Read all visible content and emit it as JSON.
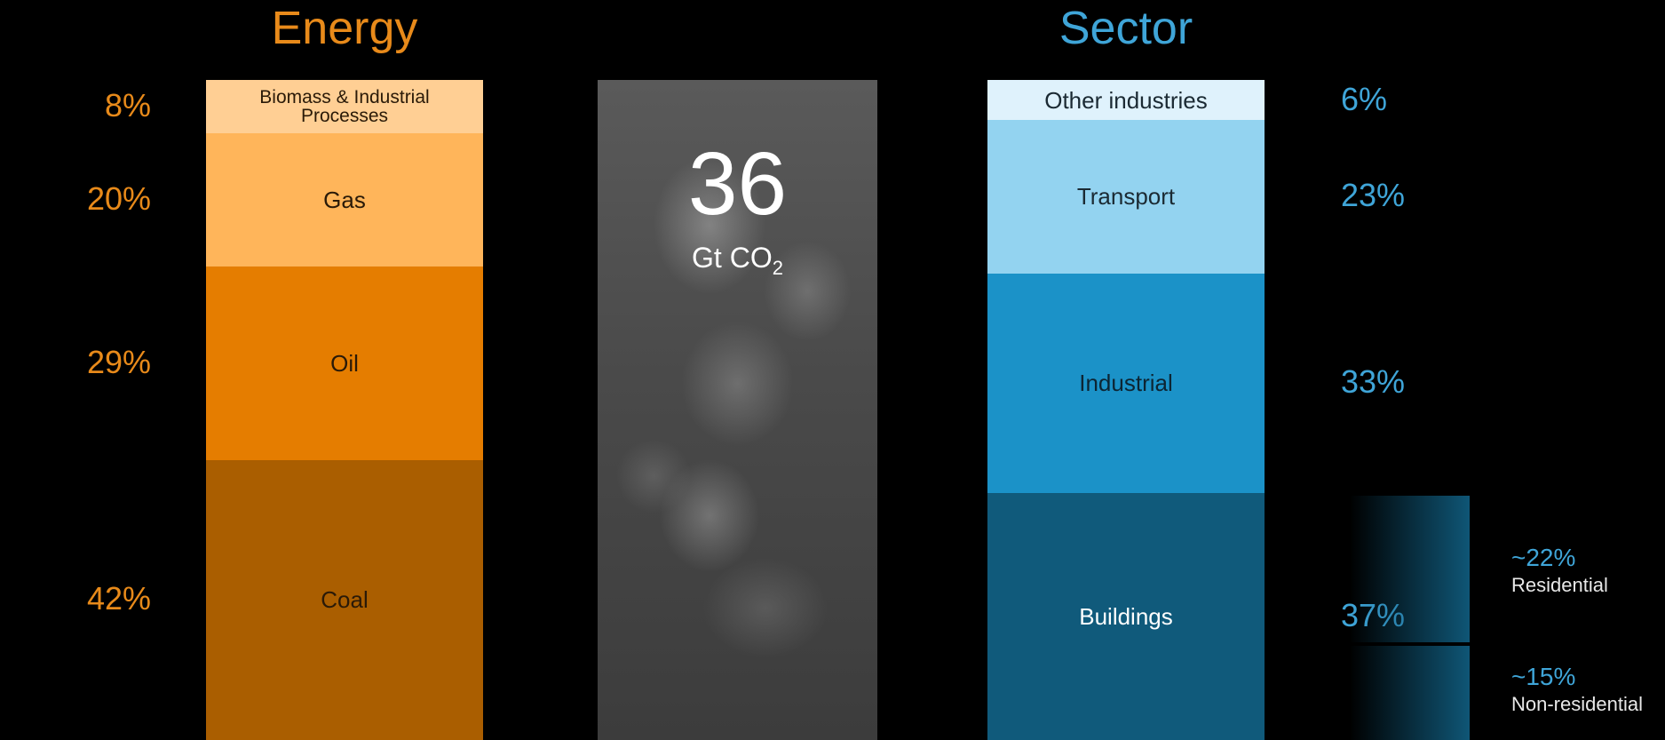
{
  "energy": {
    "title": "Energy",
    "segments": [
      {
        "label": "Biomass & Industrial Processes",
        "label_lines": [
          "Biomass & Industrial",
          "Processes"
        ],
        "percent": 8,
        "percent_label": "8%",
        "color": "#ffcf94",
        "text_color": "#2a1a08"
      },
      {
        "label": "Gas",
        "percent": 20,
        "percent_label": "20%",
        "color": "#ffb55a",
        "text_color": "#2a1a08"
      },
      {
        "label": "Oil",
        "percent": 29,
        "percent_label": "29%",
        "color": "#e57d00",
        "text_color": "#2a1a08"
      },
      {
        "label": "Coal",
        "percent": 42,
        "percent_label": "42%",
        "color": "#aa5e00",
        "text_color": "#2a1a08"
      }
    ]
  },
  "total": {
    "value": "36",
    "unit_prefix": "Gt CO",
    "unit_sub": "2"
  },
  "sector": {
    "title": "Sector",
    "segments": [
      {
        "label": "Other industries",
        "percent": 6,
        "percent_label": "6%",
        "color": "#dff2fc",
        "text_color": "#1b2a33"
      },
      {
        "label": "Transport",
        "percent": 23,
        "percent_label": "23%",
        "color": "#93d3f0",
        "text_color": "#1b2a33"
      },
      {
        "label": "Industrial",
        "percent": 33,
        "percent_label": "33%",
        "color": "#1b92c8",
        "text_color": "#0d2533"
      },
      {
        "label": "Buildings",
        "percent": 37,
        "percent_label": "37%",
        "color": "#105a7b",
        "text_color": "#ffffff"
      }
    ],
    "buildings_split": [
      {
        "percent_label": "~22%",
        "label": "Residential"
      },
      {
        "percent_label": "~15%",
        "label": "Non-residential"
      }
    ]
  },
  "chart_data": {
    "type": "bar",
    "categories": [
      "Energy",
      "Sector"
    ],
    "total": {
      "value": 36,
      "unit": "Gt CO2"
    },
    "series": [
      {
        "name": "Biomass & Industrial Processes",
        "values": [
          8,
          null
        ]
      },
      {
        "name": "Gas",
        "values": [
          20,
          null
        ]
      },
      {
        "name": "Oil",
        "values": [
          29,
          null
        ]
      },
      {
        "name": "Coal",
        "values": [
          42,
          null
        ]
      },
      {
        "name": "Other industries",
        "values": [
          null,
          6
        ]
      },
      {
        "name": "Transport",
        "values": [
          null,
          23
        ]
      },
      {
        "name": "Industrial",
        "values": [
          null,
          33
        ]
      },
      {
        "name": "Buildings",
        "values": [
          null,
          37
        ]
      }
    ],
    "buildings_breakdown": [
      {
        "name": "Residential",
        "value": 22,
        "approx": true
      },
      {
        "name": "Non-residential",
        "value": 15,
        "approx": true
      }
    ],
    "stacked": true,
    "grid": false
  }
}
